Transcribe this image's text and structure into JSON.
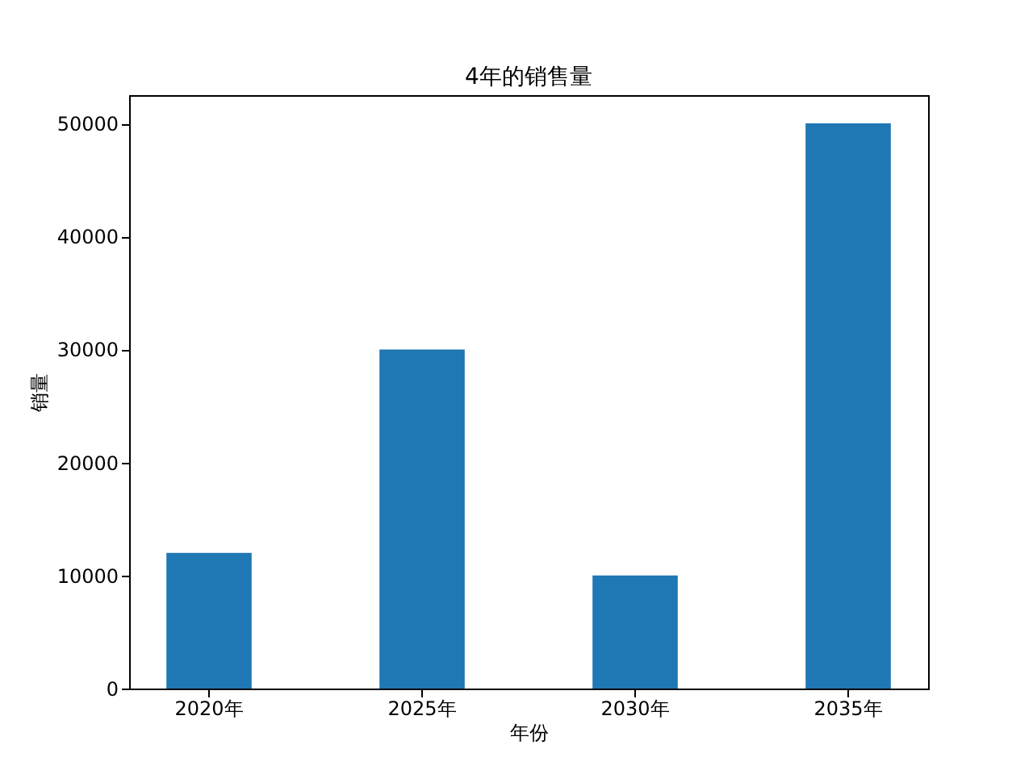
{
  "chart_data": {
    "type": "bar",
    "title": "4年的销售量",
    "xlabel": "年份",
    "ylabel": "销量",
    "categories": [
      "2020年",
      "2025年",
      "2030年",
      "2035年"
    ],
    "values": [
      12000,
      30000,
      10000,
      50000
    ],
    "color": "#1f77b4",
    "ylim": [
      0,
      52500
    ],
    "yticks": [
      0,
      10000,
      20000,
      30000,
      40000,
      50000
    ],
    "grid": false
  }
}
